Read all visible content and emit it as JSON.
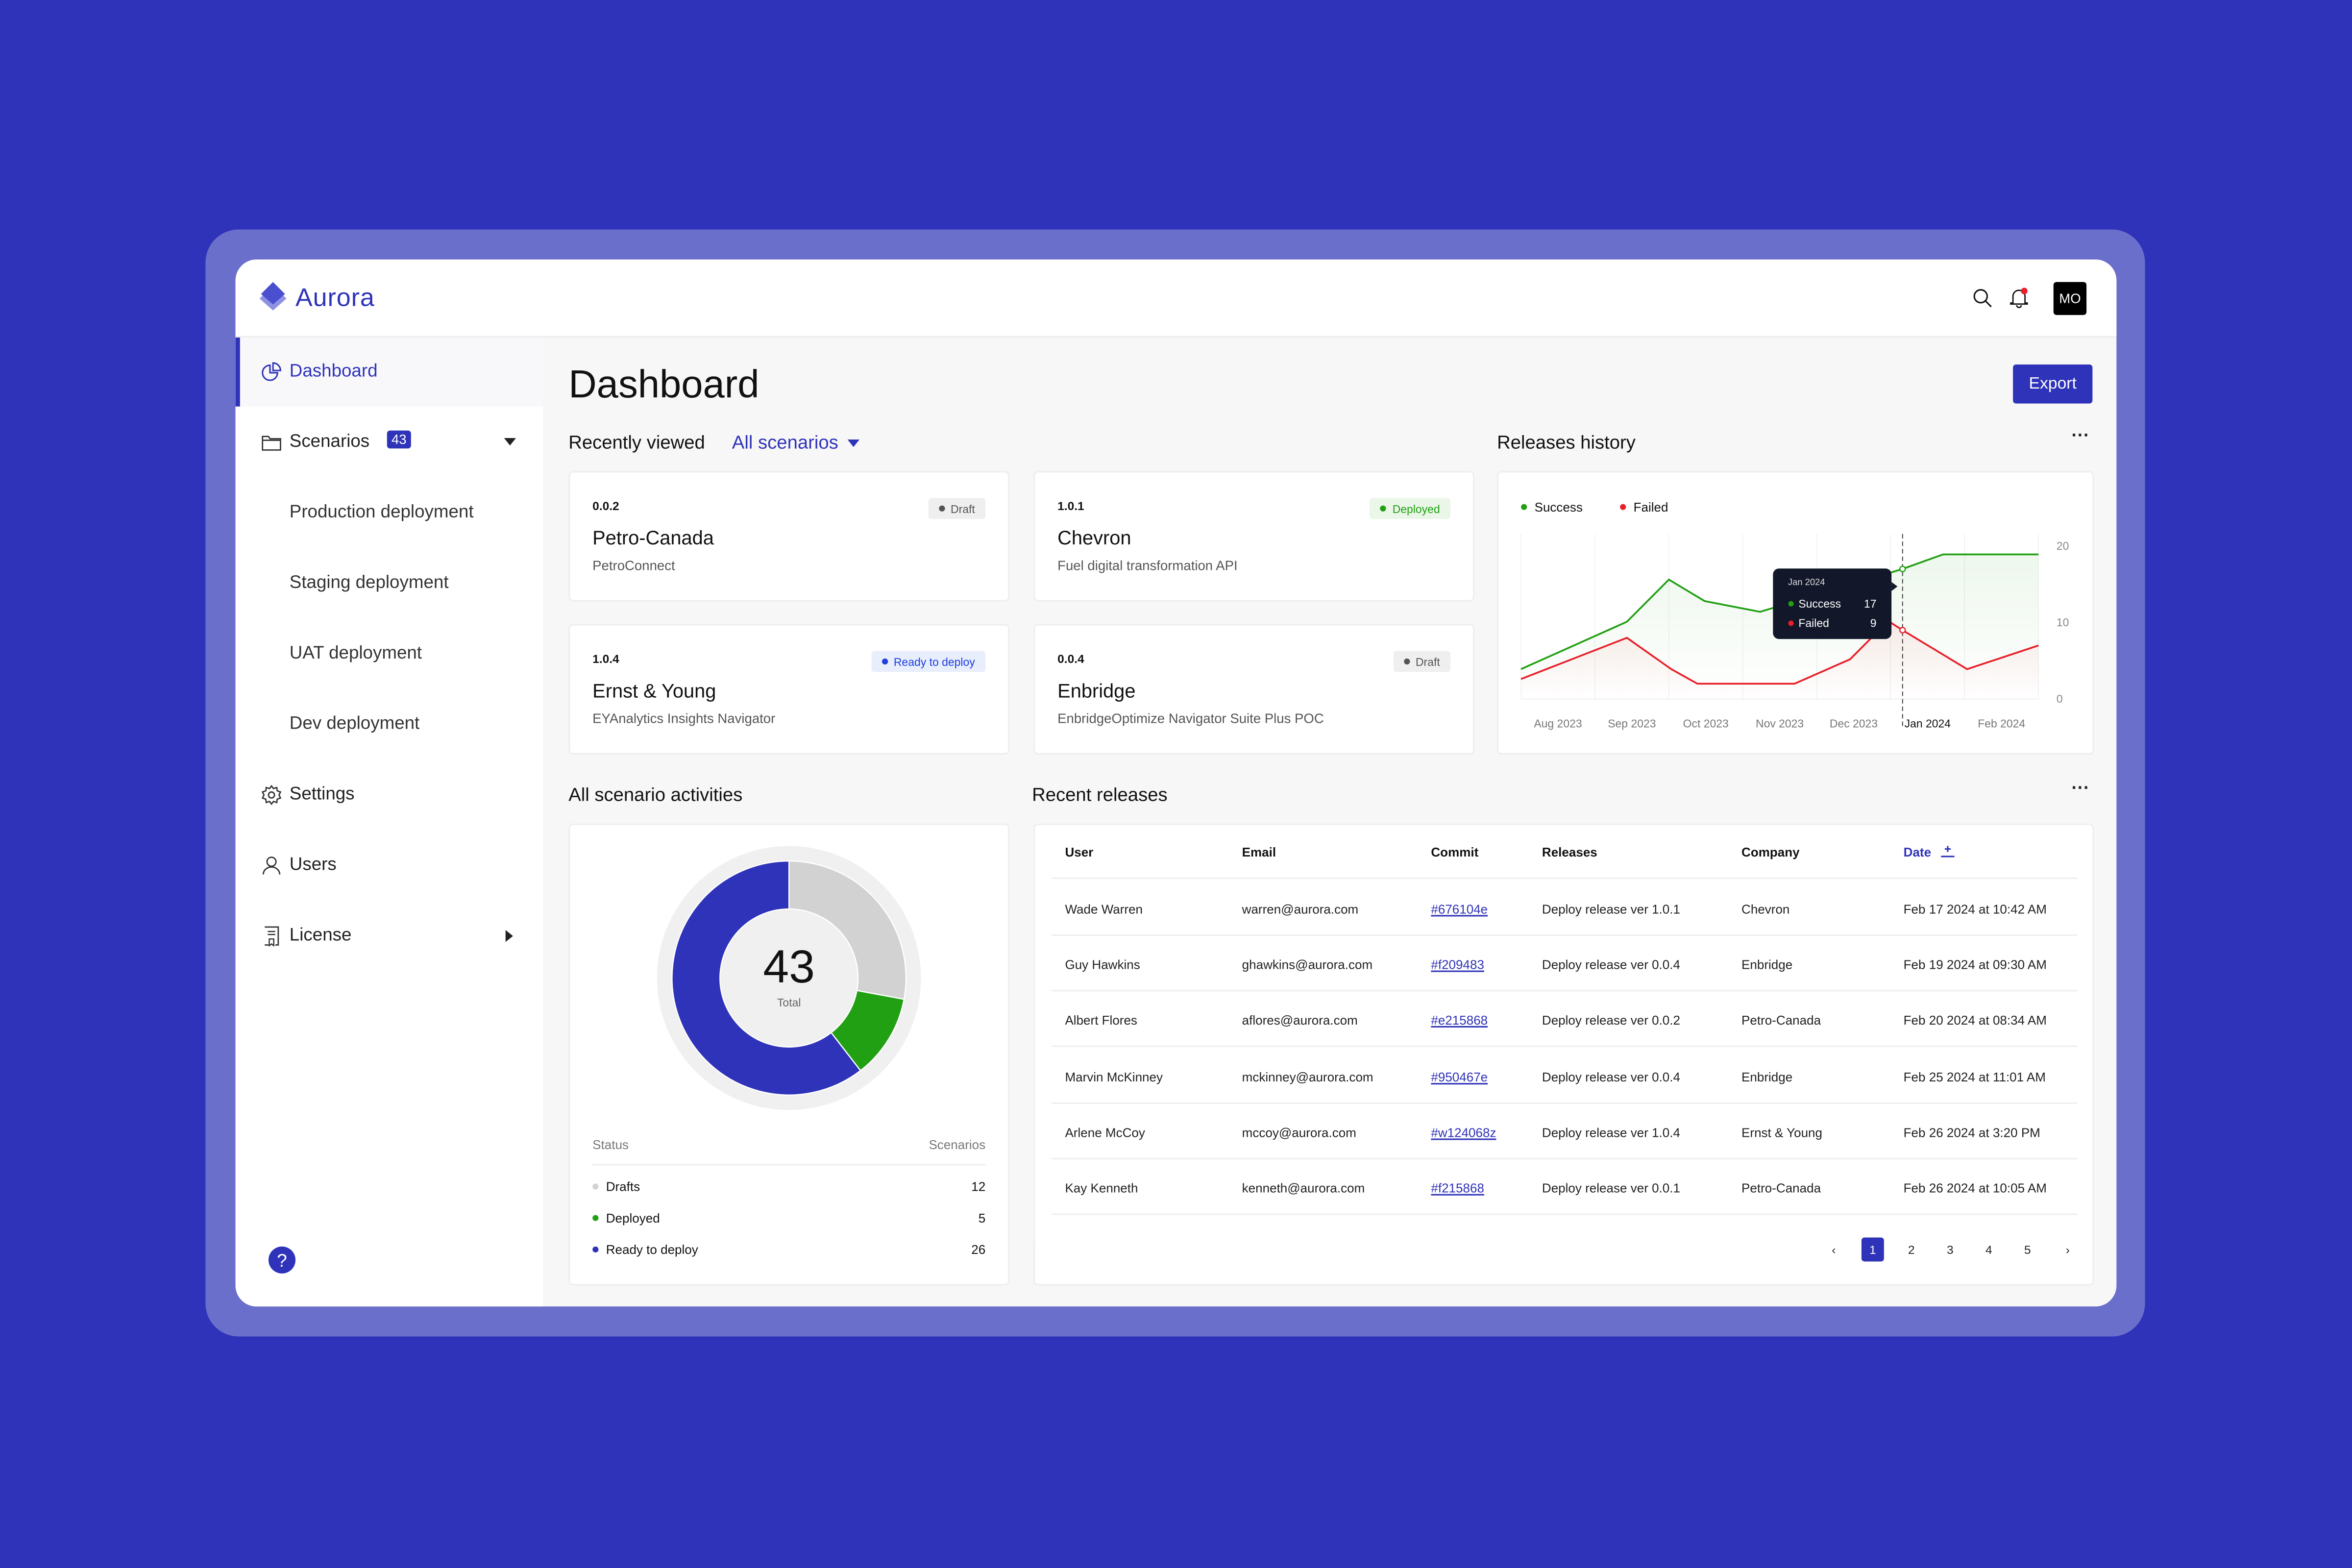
{
  "app": {
    "name": "Aurora",
    "avatar_initials": "MO"
  },
  "header": {
    "icons": [
      "search-icon",
      "bell-icon"
    ],
    "notification_dot": true
  },
  "colors": {
    "background": "#2f33b9",
    "accent": "#2f33b9",
    "success": "#22a014",
    "failed": "#e8202a",
    "draft": "#d2d2d2"
  },
  "sidebar": {
    "items": [
      {
        "label": "Dashboard",
        "icon": "pie-chart-icon",
        "active": true
      },
      {
        "label": "Scenarios",
        "icon": "folder-icon",
        "badge": "43",
        "expanded": true
      },
      {
        "label": "Production deployment"
      },
      {
        "label": "Staging deployment"
      },
      {
        "label": "UAT deployment"
      },
      {
        "label": "Dev deployment"
      },
      {
        "label": "Settings",
        "icon": "gear-icon"
      },
      {
        "label": "Users",
        "icon": "user-icon"
      },
      {
        "label": "License",
        "icon": "license-icon"
      }
    ],
    "help_icon": "help-icon"
  },
  "main": {
    "title": "Dashboard",
    "export_label": "Export",
    "recently_viewed": {
      "label": "Recently viewed",
      "filter": "All scenarios",
      "cards": [
        {
          "version": "0.0.2",
          "title": "Petro-Canada",
          "subtitle": "PetroConnect",
          "status": "Draft"
        },
        {
          "version": "1.0.1",
          "title": "Chevron",
          "subtitle": "Fuel digital transformation API",
          "status": "Deployed"
        },
        {
          "version": "1.0.4",
          "title": "Ernst & Young",
          "subtitle": "EYAnalytics Insights Navigator",
          "status": "Ready to deploy"
        },
        {
          "version": "0.0.4",
          "title": "Enbridge",
          "subtitle": "EnbridgeOptimize Navigator Suite Plus POC",
          "status": "Draft"
        }
      ]
    },
    "releases_history": {
      "label": "Releases history",
      "tooltip": {
        "title": "Jan 2024",
        "success_label": "Success",
        "success_value": "17",
        "failed_label": "Failed",
        "failed_value": "9"
      }
    },
    "activities": {
      "label": "All scenario activities",
      "total": "43",
      "total_label": "Total",
      "col_status": "Status",
      "col_scenarios": "Scenarios",
      "rows": [
        {
          "status": "Drafts",
          "count": "12",
          "color": "#d2d2d2"
        },
        {
          "status": "Deployed",
          "count": "5",
          "color": "#22a014"
        },
        {
          "status": "Ready to deploy",
          "count": "26",
          "color": "#2f33b9"
        }
      ]
    },
    "recent_releases": {
      "label": "Recent releases",
      "columns": [
        "User",
        "Email",
        "Commit",
        "Releases",
        "Company",
        "Date"
      ],
      "sorted_by": "Date",
      "rows": [
        [
          "Wade Warren",
          "warren@aurora.com",
          "#676104e",
          "Deploy release ver 1.0.1",
          "Chevron",
          "Feb 17 2024 at 10:42 AM"
        ],
        [
          "Guy Hawkins",
          "ghawkins@aurora.com",
          "#f209483",
          "Deploy release ver 0.0.4",
          "Enbridge",
          "Feb 19 2024 at 09:30 AM"
        ],
        [
          "Albert Flores",
          "aflores@aurora.com",
          "#e215868",
          "Deploy release ver 0.0.2",
          "Petro-Canada",
          "Feb 20 2024 at 08:34 AM"
        ],
        [
          "Marvin McKinney",
          "mckinney@aurora.com",
          "#950467e",
          "Deploy release ver 0.0.4",
          "Enbridge",
          "Feb 25 2024 at 11:01 AM"
        ],
        [
          "Arlene McCoy",
          "mccoy@aurora.com",
          "#w124068z",
          "Deploy release ver 1.0.4",
          "Ernst & Young",
          "Feb 26 2024 at 3:20 PM"
        ],
        [
          "Kay Kenneth",
          "kenneth@aurora.com",
          "#f215868",
          "Deploy release ver 0.0.1",
          "Petro-Canada",
          "Feb 26 2024 at 10:05 AM"
        ]
      ],
      "pagination": {
        "pages": [
          "1",
          "2",
          "3",
          "4",
          "5"
        ],
        "current": "1"
      }
    }
  },
  "chart_data": [
    {
      "type": "line",
      "title": "",
      "x_tick_labels": [
        "Aug 2023",
        "Sep 2023",
        "Oct 2023",
        "Nov 2023",
        "Dec 2023",
        "Jan 2024",
        "Feb 2024"
      ],
      "y_ticks": [
        0,
        10,
        20
      ],
      "ylim": [
        0,
        20
      ],
      "xlim": [
        "2023-08-01",
        "2024-02-29"
      ],
      "grid": "vertical",
      "legend": "top-left",
      "series": [
        {
          "name": "Success",
          "color": "#22a014",
          "points": [
            [
              "2023-08-01",
              3.9
            ],
            [
              "2023-09-14",
              10.1
            ],
            [
              "2023-10-01",
              15.6
            ],
            [
              "2023-10-16",
              12.8
            ],
            [
              "2023-11-08",
              11.4
            ],
            [
              "2024-01-06",
              17
            ],
            [
              "2024-01-23",
              18.9
            ],
            [
              "2024-02-29",
              18.9
            ]
          ]
        },
        {
          "name": "Failed",
          "color": "#e8202a",
          "points": [
            [
              "2023-08-01",
              2.6
            ],
            [
              "2023-09-14",
              8.0
            ],
            [
              "2023-10-02",
              3.9
            ],
            [
              "2023-10-13",
              2.0
            ],
            [
              "2023-11-22",
              2.0
            ],
            [
              "2023-12-15",
              5.2
            ],
            [
              "2023-12-31",
              10.2
            ],
            [
              "2024-01-06",
              9
            ],
            [
              "2024-02-02",
              3.9
            ],
            [
              "2024-02-29",
              7.0
            ]
          ]
        }
      ],
      "highlight": "Jan 2024"
    },
    {
      "type": "pie",
      "categories": [
        "Drafts",
        "Deployed",
        "Ready to deploy"
      ],
      "values": [
        12,
        5,
        26
      ],
      "colors": [
        "#d2d2d2",
        "#22a014",
        "#2f33b9"
      ],
      "center_label": "43 Total"
    }
  ]
}
